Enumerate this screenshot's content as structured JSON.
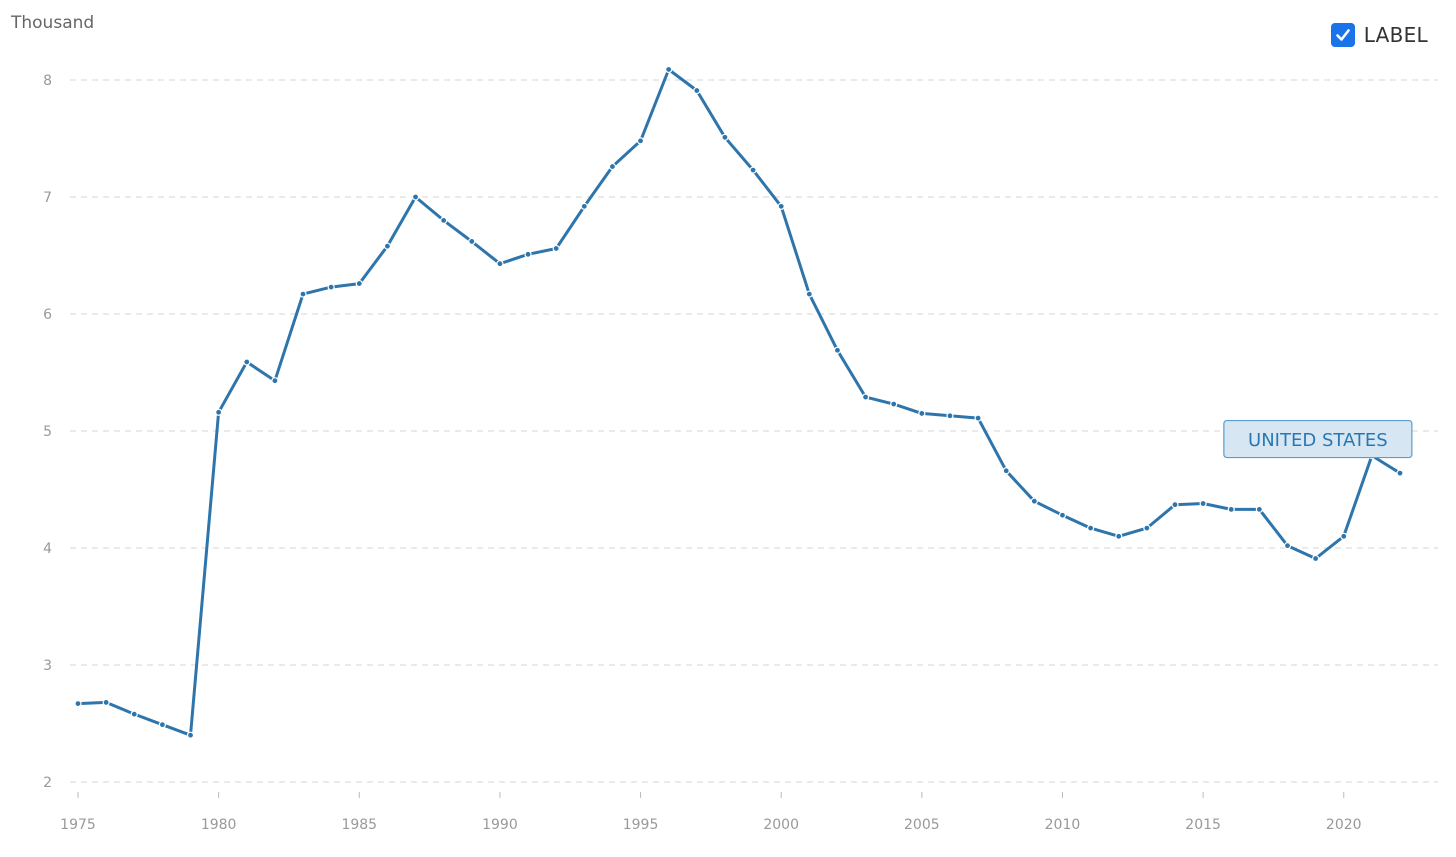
{
  "unit_label": "Thousand",
  "label_toggle": {
    "text": "LABEL",
    "checked": true
  },
  "colors": {
    "series": "#2e75ac",
    "grid": "#dddddd",
    "tick_text": "#999999",
    "label_bg": "#d6e7f3",
    "label_border": "#5d9ccb",
    "label_text": "#2a78b2",
    "checkbox": "#1a73e8"
  },
  "chart_data": {
    "type": "line",
    "title": "",
    "xlabel": "",
    "ylabel": "Thousand",
    "xlim": [
      1975,
      2022
    ],
    "ylim": [
      2,
      8
    ],
    "x_ticks": [
      1975,
      1980,
      1985,
      1990,
      1995,
      2000,
      2005,
      2010,
      2015,
      2020
    ],
    "y_ticks": [
      2,
      3,
      4,
      5,
      6,
      7,
      8
    ],
    "grid": "horizontal dashed",
    "legend": "none",
    "x": [
      1975,
      1976,
      1977,
      1978,
      1979,
      1980,
      1981,
      1982,
      1983,
      1984,
      1985,
      1986,
      1987,
      1988,
      1989,
      1990,
      1991,
      1992,
      1993,
      1994,
      1995,
      1996,
      1997,
      1998,
      1999,
      2000,
      2001,
      2002,
      2003,
      2004,
      2005,
      2006,
      2007,
      2008,
      2009,
      2010,
      2011,
      2012,
      2013,
      2014,
      2015,
      2016,
      2017,
      2018,
      2019,
      2020,
      2021,
      2022
    ],
    "series": [
      {
        "name": "UNITED STATES",
        "values": [
          2.67,
          2.68,
          2.58,
          2.49,
          2.4,
          5.16,
          5.59,
          5.43,
          6.17,
          6.23,
          6.26,
          6.58,
          7.0,
          6.8,
          6.62,
          6.43,
          6.51,
          6.56,
          6.92,
          7.26,
          7.48,
          8.09,
          7.91,
          7.51,
          7.23,
          6.92,
          6.17,
          5.69,
          5.29,
          5.23,
          5.15,
          5.13,
          5.11,
          4.66,
          4.4,
          4.28,
          4.17,
          4.1,
          4.17,
          4.37,
          4.38,
          4.33,
          4.33,
          4.02,
          3.91,
          4.1,
          4.79,
          4.64
        ]
      }
    ]
  }
}
